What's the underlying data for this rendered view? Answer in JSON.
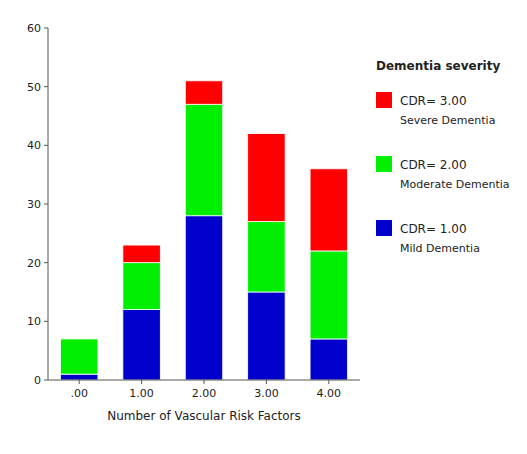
{
  "chart_data": {
    "type": "bar",
    "stacked": true,
    "xlabel": "Number of Vascular Risk Factors",
    "categories": [
      ".00",
      "1.00",
      "2.00",
      "3.00",
      "4.00"
    ],
    "series": [
      {
        "name": "CDR= 1.00",
        "description": "Mild Dementia",
        "color": "#0000CC",
        "values": [
          1,
          12,
          28,
          15,
          7
        ]
      },
      {
        "name": "CDR= 2.00",
        "description": "Moderate Dementia",
        "color": "#00EE00",
        "values": [
          6,
          8,
          19,
          12,
          15
        ]
      },
      {
        "name": "CDR= 3.00",
        "description": "Severe Dementia",
        "color": "#FF0000",
        "values": [
          0,
          3,
          4,
          15,
          14
        ]
      }
    ],
    "legend_title": "Dementia severity",
    "legend": "right",
    "ylim": [
      0,
      60
    ],
    "yticks": [
      0,
      10,
      20,
      30,
      40,
      50,
      60
    ],
    "grid": false
  }
}
